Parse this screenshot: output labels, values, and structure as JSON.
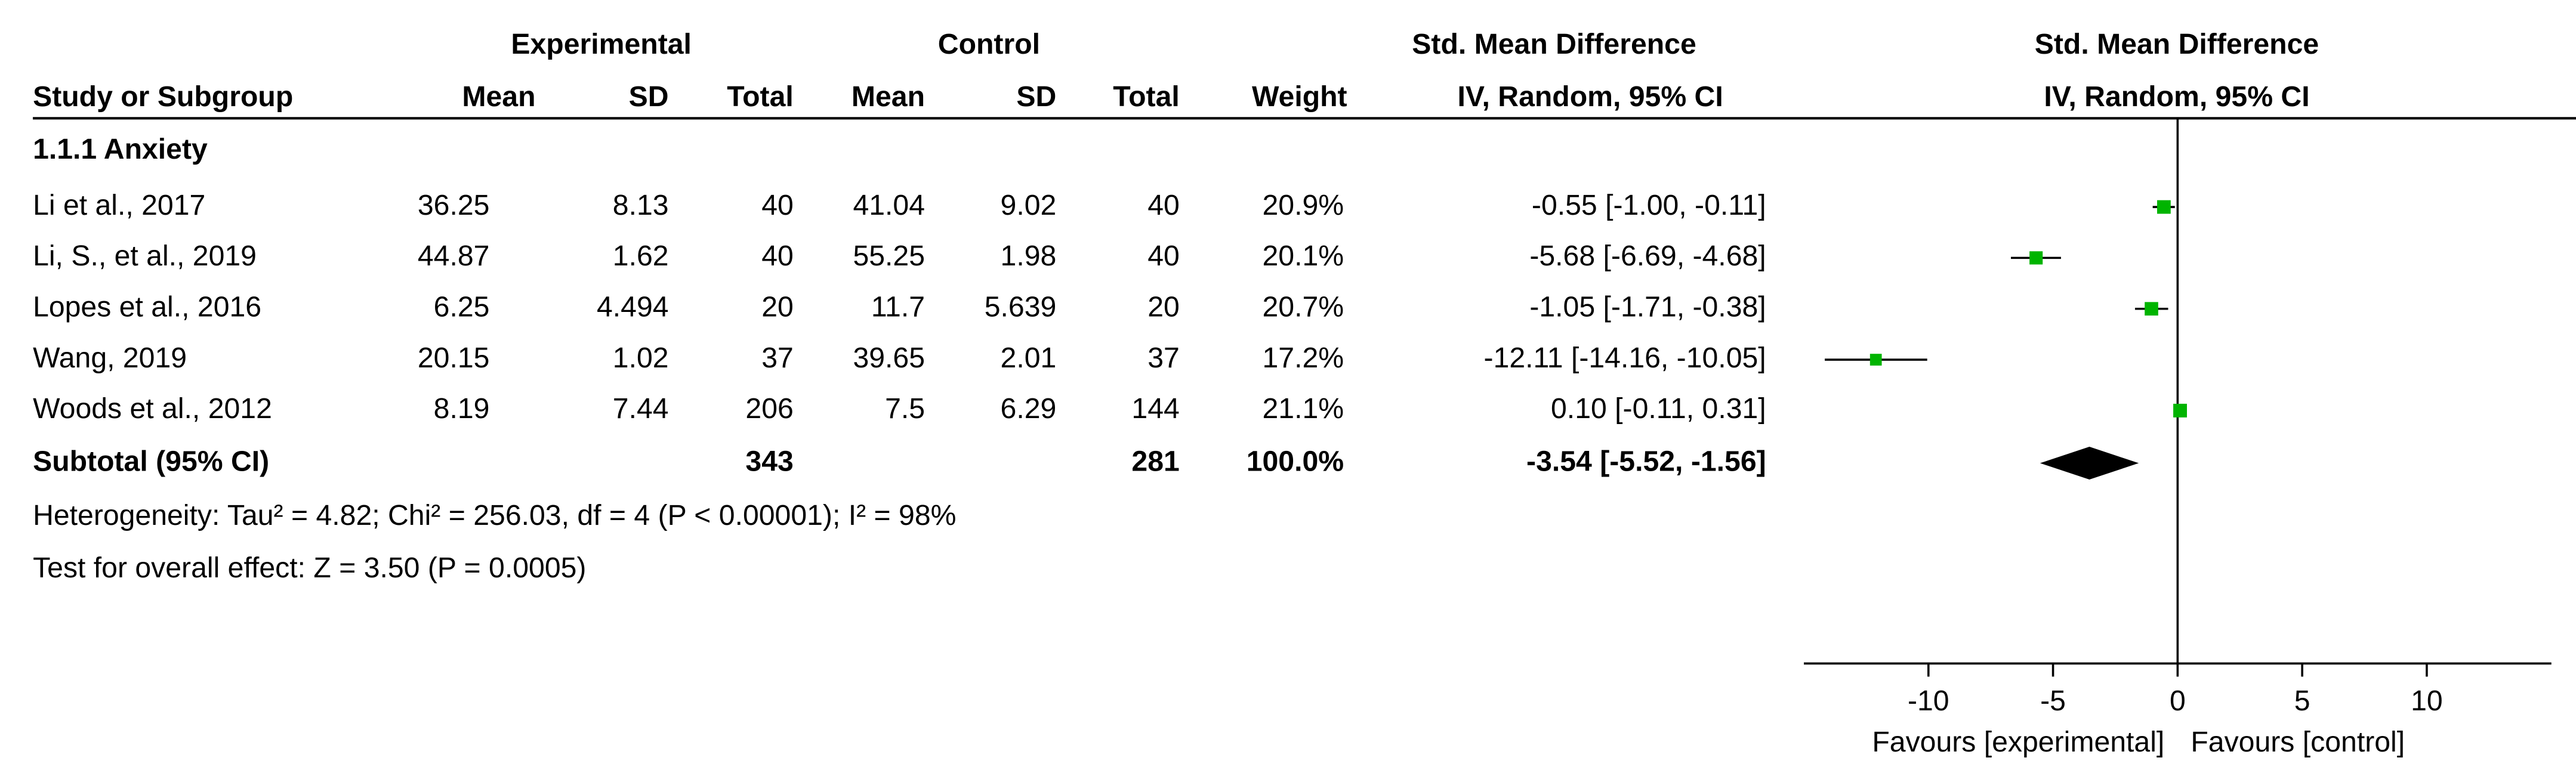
{
  "chart_data": {
    "type": "forest",
    "group_headers": {
      "experimental": "Experimental",
      "control": "Control",
      "effect": "Std. Mean Difference",
      "plot": "Std. Mean Difference"
    },
    "columns": {
      "study": "Study or Subgroup",
      "exp_mean": "Mean",
      "exp_sd": "SD",
      "exp_total": "Total",
      "ctrl_mean": "Mean",
      "ctrl_sd": "SD",
      "ctrl_total": "Total",
      "weight": "Weight",
      "effect": "IV, Random, 95% CI",
      "plot": "IV, Random, 95% CI"
    },
    "subgroup": "1.1.1 Anxiety",
    "studies": [
      {
        "name": "Li et al., 2017",
        "exp_mean": 36.25,
        "exp_sd": 8.13,
        "exp_total": 40,
        "ctrl_mean": 41.04,
        "ctrl_sd": 9.02,
        "ctrl_total": 40,
        "weight": 20.9,
        "weight_label": "20.9%",
        "smd": -0.55,
        "ci_low": -1.0,
        "ci_high": -0.11,
        "ci_label": "-0.55 [-1.00, -0.11]"
      },
      {
        "name": "Li, S., et al., 2019",
        "exp_mean": 44.87,
        "exp_sd": 1.62,
        "exp_total": 40,
        "ctrl_mean": 55.25,
        "ctrl_sd": 1.98,
        "ctrl_total": 40,
        "weight": 20.1,
        "weight_label": "20.1%",
        "smd": -5.68,
        "ci_low": -6.69,
        "ci_high": -4.68,
        "ci_label": "-5.68 [-6.69, -4.68]"
      },
      {
        "name": "Lopes et al., 2016",
        "exp_mean": 6.25,
        "exp_sd": 4.494,
        "exp_total": 20,
        "ctrl_mean": 11.7,
        "ctrl_sd": 5.639,
        "ctrl_total": 20,
        "weight": 20.7,
        "weight_label": "20.7%",
        "smd": -1.05,
        "ci_low": -1.71,
        "ci_high": -0.38,
        "ci_label": "-1.05 [-1.71, -0.38]"
      },
      {
        "name": "Wang, 2019",
        "exp_mean": 20.15,
        "exp_sd": 1.02,
        "exp_total": 37,
        "ctrl_mean": 39.65,
        "ctrl_sd": 2.01,
        "ctrl_total": 37,
        "weight": 17.2,
        "weight_label": "17.2%",
        "smd": -12.11,
        "ci_low": -14.16,
        "ci_high": -10.05,
        "ci_label": "-12.11 [-14.16, -10.05]"
      },
      {
        "name": "Woods et al., 2012",
        "exp_mean": 8.19,
        "exp_sd": 7.44,
        "exp_total": 206,
        "ctrl_mean": 7.5,
        "ctrl_sd": 6.29,
        "ctrl_total": 144,
        "weight": 21.1,
        "weight_label": "21.1%",
        "smd": 0.1,
        "ci_low": -0.11,
        "ci_high": 0.31,
        "ci_label": "0.10 [-0.11, 0.31]"
      }
    ],
    "subtotal": {
      "name": "Subtotal (95% CI)",
      "exp_total": 343,
      "ctrl_total": 281,
      "weight": 100.0,
      "weight_label": "100.0%",
      "smd": -3.54,
      "ci_low": -5.52,
      "ci_high": -1.56,
      "ci_label": "-3.54 [-5.52, -1.56]"
    },
    "heterogeneity": "Heterogeneity: Tau² = 4.82; Chi² = 256.03, df = 4 (P < 0.00001); I² = 98%",
    "overall_test": "Test for overall effect: Z = 3.50 (P = 0.0005)",
    "xlim": [
      -15,
      15
    ],
    "xticks": [
      -10,
      -5,
      0,
      5,
      10
    ],
    "xlabel_left": "Favours [experimental]",
    "xlabel_right": "Favours [control]",
    "marker_color": "#00b400"
  }
}
